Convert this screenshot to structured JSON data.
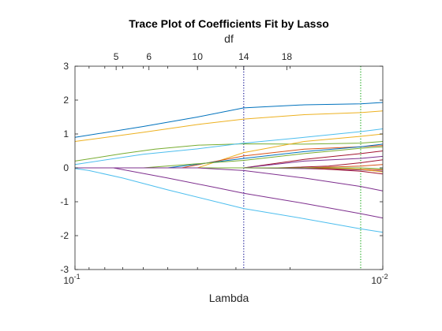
{
  "chart_data": {
    "type": "line",
    "title": "Trace Plot of Coefficients Fit by Lasso",
    "xlabel": "Lambda",
    "x2label": "df",
    "ylabel": "",
    "x_scale": "log-reversed",
    "xlim": [
      0.1,
      0.01
    ],
    "ylim": [
      -3,
      3
    ],
    "grid": false,
    "legend": "none",
    "x_tick_labels": [
      {
        "base": "10",
        "exp": "-1",
        "value": 0.1
      },
      {
        "base": "10",
        "exp": "-2",
        "value": 0.01
      }
    ],
    "y_ticks": [
      -3,
      -2,
      -1,
      0,
      1,
      2,
      3
    ],
    "df_ticks": [
      {
        "label": "5",
        "lambda": 0.0735
      },
      {
        "label": "6",
        "lambda": 0.0575
      },
      {
        "label": "10",
        "lambda": 0.04
      },
      {
        "label": "14",
        "lambda": 0.0283
      },
      {
        "label": "18",
        "lambda": 0.0205
      }
    ],
    "reference_lines": [
      {
        "lambda": 0.0283,
        "style": "dotted",
        "color": "#00008b"
      },
      {
        "lambda": 0.0118,
        "style": "dotted",
        "color": "#00a000"
      }
    ],
    "series": [
      {
        "color": "#0072BD",
        "points": [
          [
            0.1,
            0.9
          ],
          [
            0.06,
            1.22
          ],
          [
            0.04,
            1.5
          ],
          [
            0.0283,
            1.77
          ],
          [
            0.018,
            1.86
          ],
          [
            0.0118,
            1.89
          ],
          [
            0.01,
            1.93
          ]
        ]
      },
      {
        "color": "#EDB120",
        "points": [
          [
            0.1,
            0.78
          ],
          [
            0.06,
            1.05
          ],
          [
            0.04,
            1.28
          ],
          [
            0.0283,
            1.44
          ],
          [
            0.018,
            1.57
          ],
          [
            0.0118,
            1.63
          ],
          [
            0.01,
            1.68
          ]
        ]
      },
      {
        "color": "#77AC30",
        "points": [
          [
            0.1,
            0.2
          ],
          [
            0.07,
            0.42
          ],
          [
            0.055,
            0.55
          ],
          [
            0.04,
            0.67
          ],
          [
            0.0283,
            0.71
          ],
          [
            0.018,
            0.7
          ],
          [
            0.0118,
            0.73
          ],
          [
            0.01,
            0.78
          ]
        ]
      },
      {
        "color": "#4DBEEE",
        "points": [
          [
            0.1,
            0.1
          ],
          [
            0.06,
            0.4
          ],
          [
            0.04,
            0.56
          ],
          [
            0.0283,
            0.73
          ],
          [
            0.018,
            0.9
          ],
          [
            0.0118,
            1.07
          ],
          [
            0.01,
            1.15
          ]
        ]
      },
      {
        "color": "#EDB120",
        "points": [
          [
            0.1,
            0.0
          ],
          [
            0.04,
            0.0
          ],
          [
            0.0283,
            0.45
          ],
          [
            0.018,
            0.78
          ],
          [
            0.0118,
            0.93
          ],
          [
            0.01,
            1.0
          ]
        ]
      },
      {
        "color": "#D95319",
        "points": [
          [
            0.1,
            0.0
          ],
          [
            0.045,
            0.0
          ],
          [
            0.0283,
            0.35
          ],
          [
            0.018,
            0.55
          ],
          [
            0.0118,
            0.62
          ],
          [
            0.01,
            0.66
          ]
        ]
      },
      {
        "color": "#0072BD",
        "points": [
          [
            0.1,
            0.0
          ],
          [
            0.05,
            0.0
          ],
          [
            0.0283,
            0.28
          ],
          [
            0.018,
            0.48
          ],
          [
            0.0118,
            0.62
          ],
          [
            0.01,
            0.7
          ]
        ]
      },
      {
        "color": "#77AC30",
        "points": [
          [
            0.1,
            0.0
          ],
          [
            0.06,
            0.0
          ],
          [
            0.04,
            0.12
          ],
          [
            0.0283,
            0.22
          ],
          [
            0.018,
            0.42
          ],
          [
            0.0118,
            0.58
          ],
          [
            0.01,
            0.62
          ]
        ]
      },
      {
        "color": "#A2142F",
        "points": [
          [
            0.1,
            0.0
          ],
          [
            0.0283,
            0.0
          ],
          [
            0.018,
            0.25
          ],
          [
            0.0118,
            0.42
          ],
          [
            0.01,
            0.5
          ]
        ]
      },
      {
        "color": "#7E2F8E",
        "points": [
          [
            0.1,
            0.0
          ],
          [
            0.0283,
            0.0
          ],
          [
            0.018,
            0.2
          ],
          [
            0.0118,
            0.28
          ],
          [
            0.01,
            0.34
          ]
        ]
      },
      {
        "color": "#A2142F",
        "points": [
          [
            0.1,
            0.0
          ],
          [
            0.022,
            0.0
          ],
          [
            0.015,
            0.05
          ],
          [
            0.0118,
            0.15
          ],
          [
            0.01,
            0.24
          ]
        ]
      },
      {
        "color": "#D95319",
        "points": [
          [
            0.1,
            0.0
          ],
          [
            0.018,
            0.0
          ],
          [
            0.0118,
            0.05
          ],
          [
            0.01,
            0.1
          ]
        ]
      },
      {
        "color": "#D95319",
        "points": [
          [
            0.1,
            0.0
          ],
          [
            0.0283,
            0.0
          ],
          [
            0.018,
            0.0
          ],
          [
            0.0118,
            -0.04
          ],
          [
            0.01,
            -0.06
          ]
        ]
      },
      {
        "color": "#7E2F8E",
        "points": [
          [
            0.1,
            0.0
          ],
          [
            0.0283,
            0.0
          ],
          [
            0.018,
            -0.02
          ],
          [
            0.0118,
            -0.06
          ],
          [
            0.01,
            -0.1
          ]
        ]
      },
      {
        "color": "#A2142F",
        "points": [
          [
            0.1,
            0.0
          ],
          [
            0.018,
            0.0
          ],
          [
            0.0118,
            -0.1
          ],
          [
            0.01,
            -0.18
          ]
        ]
      },
      {
        "color": "#EDB120",
        "points": [
          [
            0.1,
            0.0
          ],
          [
            0.015,
            0.0
          ],
          [
            0.0118,
            -0.04
          ],
          [
            0.01,
            -0.12
          ]
        ]
      },
      {
        "color": "#77AC30",
        "points": [
          [
            0.1,
            0.0
          ],
          [
            0.0118,
            0.0
          ],
          [
            0.01,
            -0.03
          ]
        ]
      },
      {
        "color": "#7E2F8E",
        "points": [
          [
            0.1,
            0.0
          ],
          [
            0.04,
            0.0
          ],
          [
            0.0283,
            -0.08
          ],
          [
            0.018,
            -0.3
          ],
          [
            0.0118,
            -0.55
          ],
          [
            0.01,
            -0.68
          ]
        ]
      },
      {
        "color": "#7E2F8E",
        "points": [
          [
            0.1,
            0.0
          ],
          [
            0.075,
            0.0
          ],
          [
            0.05,
            -0.3
          ],
          [
            0.035,
            -0.58
          ],
          [
            0.0283,
            -0.75
          ],
          [
            0.018,
            -1.05
          ],
          [
            0.0118,
            -1.35
          ],
          [
            0.01,
            -1.48
          ]
        ]
      },
      {
        "color": "#4DBEEE",
        "points": [
          [
            0.1,
            -0.02
          ],
          [
            0.09,
            -0.08
          ],
          [
            0.07,
            -0.3
          ],
          [
            0.05,
            -0.65
          ],
          [
            0.0283,
            -1.2
          ],
          [
            0.018,
            -1.5
          ],
          [
            0.0118,
            -1.8
          ],
          [
            0.01,
            -1.9
          ]
        ]
      }
    ]
  }
}
